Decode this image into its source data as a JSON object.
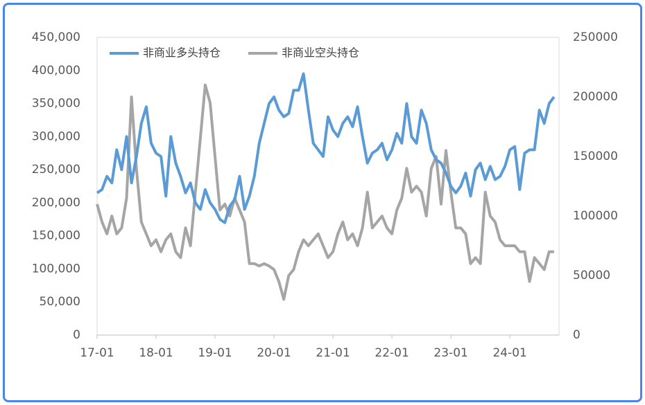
{
  "chart_data": {
    "type": "line",
    "categories": [
      "17-01",
      null,
      null,
      null,
      null,
      null,
      null,
      null,
      null,
      null,
      null,
      null,
      "18-01",
      null,
      null,
      null,
      null,
      null,
      null,
      null,
      null,
      null,
      null,
      null,
      "19-01",
      null,
      null,
      null,
      null,
      null,
      null,
      null,
      null,
      null,
      null,
      null,
      "20-01",
      null,
      null,
      null,
      null,
      null,
      null,
      null,
      null,
      null,
      null,
      null,
      "21-01",
      null,
      null,
      null,
      null,
      null,
      null,
      null,
      null,
      null,
      null,
      null,
      "22-01",
      null,
      null,
      null,
      null,
      null,
      null,
      null,
      null,
      null,
      null,
      null,
      "23-01",
      null,
      null,
      null,
      null,
      null,
      null,
      null,
      null,
      null,
      null,
      null,
      "24-01",
      null,
      null,
      null,
      null,
      null,
      null,
      null,
      null,
      null
    ],
    "series": [
      {
        "name": "非商业多头持仓",
        "color": "#5b9bd5",
        "values": [
          215000,
          220000,
          240000,
          230000,
          280000,
          250000,
          300000,
          230000,
          270000,
          320000,
          345000,
          290000,
          275000,
          270000,
          210000,
          300000,
          260000,
          240000,
          215000,
          230000,
          200000,
          190000,
          220000,
          200000,
          190000,
          175000,
          170000,
          195000,
          205000,
          240000,
          190000,
          210000,
          240000,
          290000,
          320000,
          350000,
          360000,
          340000,
          330000,
          335000,
          370000,
          370000,
          395000,
          340000,
          290000,
          280000,
          270000,
          330000,
          310000,
          300000,
          320000,
          330000,
          315000,
          345000,
          300000,
          260000,
          275000,
          280000,
          290000,
          265000,
          280000,
          305000,
          290000,
          350000,
          300000,
          290000,
          340000,
          320000,
          280000,
          265000,
          260000,
          245000,
          225000,
          215000,
          225000,
          245000,
          210000,
          250000,
          260000,
          235000,
          255000,
          235000,
          240000,
          255000,
          280000,
          285000,
          220000,
          275000,
          280000,
          280000,
          340000,
          320000,
          350000,
          360000
        ]
      },
      {
        "name": "非商业空头持仓",
        "color": "#a5a5a5",
        "axis": "y2",
        "values": [
          110000,
          95000,
          85000,
          100000,
          85000,
          90000,
          115000,
          200000,
          140000,
          95000,
          85000,
          75000,
          80000,
          70000,
          80000,
          85000,
          70000,
          65000,
          90000,
          75000,
          120000,
          165000,
          210000,
          195000,
          150000,
          105000,
          110000,
          100000,
          115000,
          105000,
          95000,
          60000,
          60000,
          58000,
          60000,
          58000,
          55000,
          45000,
          30000,
          50000,
          55000,
          70000,
          80000,
          75000,
          80000,
          85000,
          75000,
          65000,
          70000,
          85000,
          95000,
          80000,
          85000,
          75000,
          90000,
          120000,
          90000,
          95000,
          100000,
          90000,
          85000,
          105000,
          115000,
          140000,
          120000,
          125000,
          120000,
          100000,
          140000,
          150000,
          110000,
          155000,
          120000,
          90000,
          90000,
          85000,
          60000,
          65000,
          60000,
          120000,
          100000,
          95000,
          80000,
          75000,
          75000,
          75000,
          70000,
          70000,
          45000,
          65000,
          60000,
          55000,
          70000,
          70000
        ]
      }
    ],
    "ylim": [
      0,
      450000
    ],
    "yticks": [
      0,
      {
        "value": 50000,
        "label": "50,000"
      },
      {
        "value": 100000,
        "label": "100,000"
      },
      {
        "value": 150000,
        "label": "150,000"
      },
      {
        "value": 200000,
        "label": "200,000"
      },
      {
        "value": 250000,
        "label": "250,000"
      },
      {
        "value": 300000,
        "label": "300,000"
      },
      {
        "value": 350000,
        "label": "350,000"
      },
      {
        "value": 400000,
        "label": "400,000"
      },
      {
        "value": 450000,
        "label": "450,000"
      }
    ],
    "y2lim": [
      0,
      250000
    ],
    "y2ticks": [
      0,
      50000,
      100000,
      150000,
      200000,
      250000
    ],
    "grid": false,
    "legend": "top-left"
  }
}
